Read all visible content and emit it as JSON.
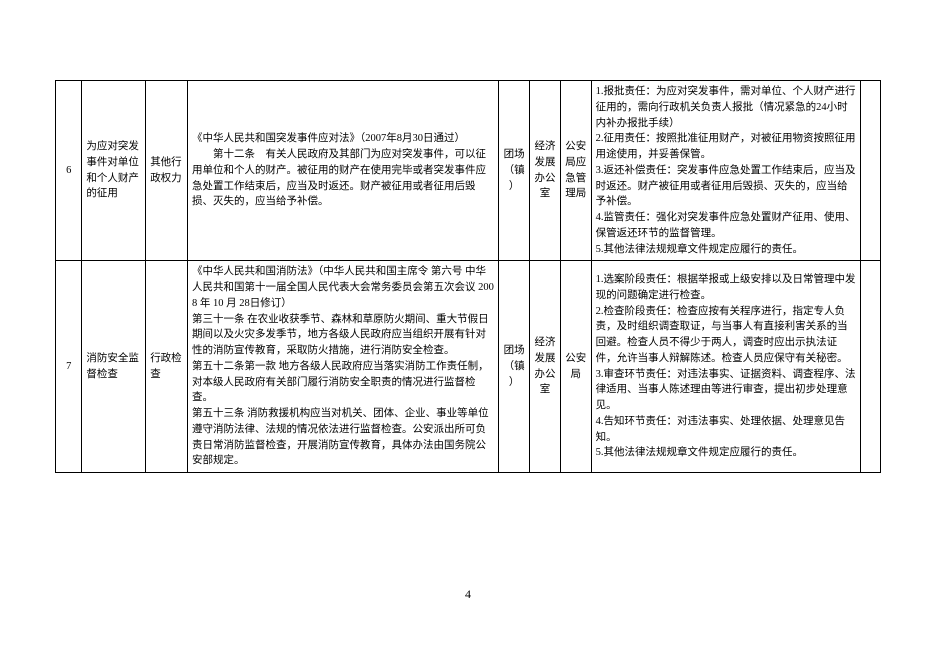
{
  "pageNumber": "4",
  "rows": [
    {
      "num": "6",
      "title": "为应对突发事件对单位和个人财产的征用",
      "type": "其他行政权力",
      "basis": "《中华人民共和国突发事件应对法》（2007年8月30日通过）\n　　第十二条　有关人民政府及其部门为应对突发事件，可以征用单位和个人的财产。被征用的财产在使用完毕或者突发事件应急处置工作结束后，应当及时返还。财产被征用或者征用后毁损、灭失的，应当给予补偿。",
      "org1": "团场（镇）",
      "org2": "经济发展办公室",
      "org3": "公安局应急管理局",
      "duty": "1.报批责任：为应对突发事件，需对单位、个人财产进行征用的，需向行政机关负责人报批（情况紧急的24小时内补办报批手续）\n2.征用责任：按照批准征用财产，对被征用物资按照征用用途使用，并妥善保管。\n3.返还补偿责任：突发事件应急处置工作结束后，应当及时返还。财产被征用或者征用后毁损、灭失的，应当给予补偿。\n4.监管责任：强化对突发事件应急处置财产征用、使用、保管返还环节的监督管理。\n5.其他法律法规规章文件规定应履行的责任。"
    },
    {
      "num": "7",
      "title": "消防安全监督检查",
      "type": "行政检查",
      "basis": "《中华人民共和国消防法》（中华人民共和国主席令 第六号 中华人民共和国第十一届全国人民代表大会常务委员会第五次会议 2008 年 10 月 28日修订）\n第三十一条 在农业收获季节、森林和草原防火期间、重大节假日期间以及火灾多发季节，地方各级人民政府应当组织开展有针对性的消防宣传教育，采取防火措施，进行消防安全检查。\n第五十二条第一款 地方各级人民政府应当落实消防工作责任制，对本级人民政府有关部门履行消防安全职责的情况进行监督检查。\n第五十三条 消防救援机构应当对机关、团体、企业、事业等单位遵守消防法律、法规的情况依法进行监督检查。公安派出所可负责日常消防监督检查，开展消防宣传教育，具体办法由国务院公安部规定。",
      "org1": "团场（镇）",
      "org2": "经济发展办公室",
      "org3": "公安局",
      "duty": "1.选案阶段责任：根据举报或上级安排以及日常管理中发现的问题确定进行检查。\n2.检查阶段责任：检查应按有关程序进行，指定专人负责，及时组织调查取证，与当事人有直接利害关系的当回避。检查人员不得少于两人，调查时应出示执法证件，允许当事人辩解陈述。检查人员应保守有关秘密。\n3.审查环节责任：对违法事实、证据资料、调查程序、法律适用、当事人陈述理由等进行审查，提出初步处理意见。\n4.告知环节责任：对违法事实、处理依据、处理意见告知。\n5.其他法律法规规章文件规定应履行的责任。"
    }
  ]
}
